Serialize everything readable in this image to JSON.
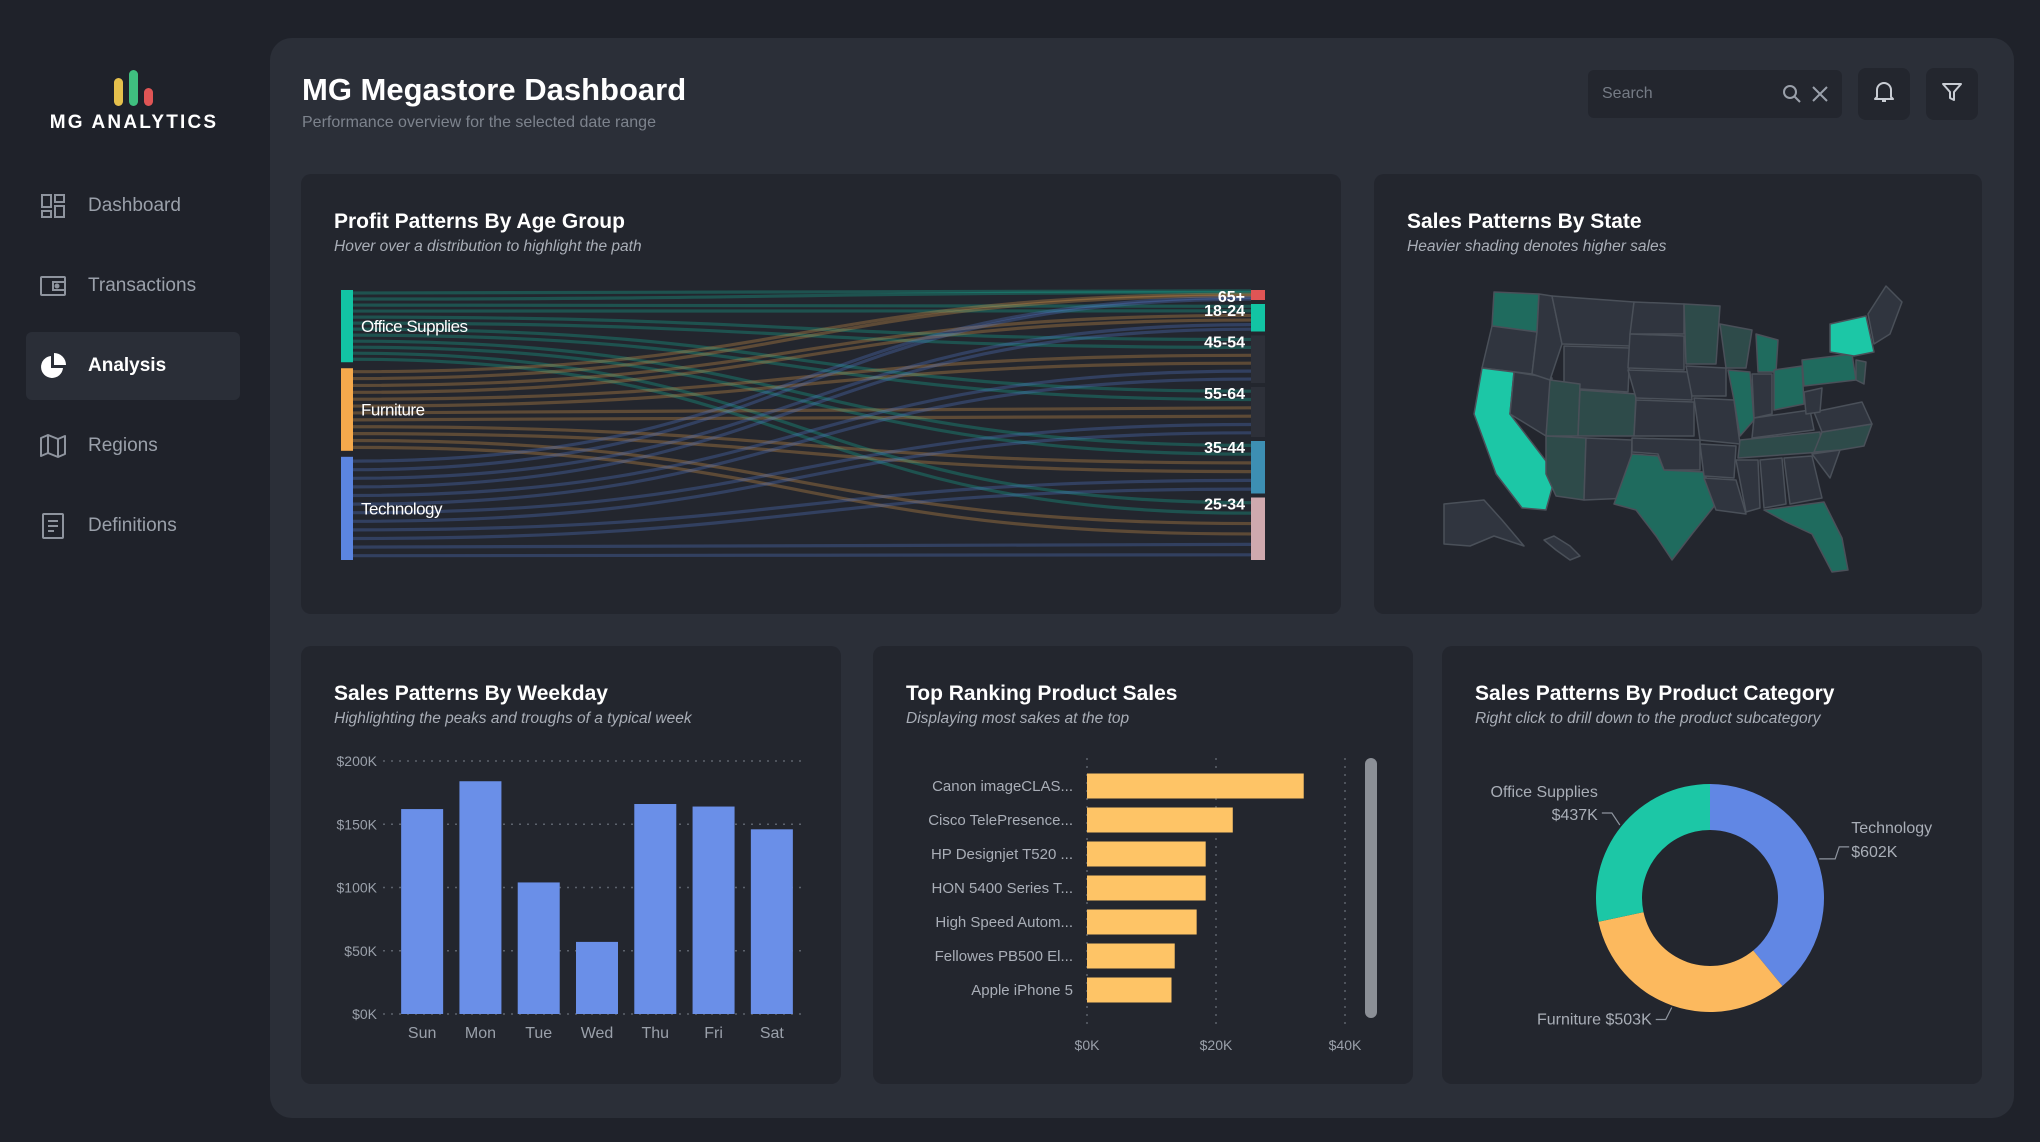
{
  "app": {
    "logo_text": "MG ANALYTICS",
    "logo_colors": [
      "#e5c04c",
      "#3fbf7f",
      "#e05555"
    ]
  },
  "sidebar": {
    "items": [
      {
        "label": "Dashboard",
        "icon": "dashboard-icon",
        "active": false
      },
      {
        "label": "Transactions",
        "icon": "wallet-icon",
        "active": false
      },
      {
        "label": "Analysis",
        "icon": "pie-chart-icon",
        "active": true
      },
      {
        "label": "Regions",
        "icon": "map-icon",
        "active": false
      },
      {
        "label": "Definitions",
        "icon": "document-icon",
        "active": false
      }
    ]
  },
  "header": {
    "title": "MG Megastore Dashboard",
    "subtitle": "Performance overview for the selected date range",
    "search_placeholder": "Search",
    "search_value": ""
  },
  "cards": {
    "profit_age": {
      "title": "Profit Patterns By Age Group",
      "subtitle": "Hover over a distribution to highlight the path"
    },
    "sales_state": {
      "title": "Sales Patterns By State",
      "subtitle": "Heavier shading denotes higher sales"
    },
    "sales_weekday": {
      "title": "Sales Patterns By Weekday",
      "subtitle": "Highlighting the peaks and troughs of a typical week"
    },
    "top_products": {
      "title": "Top Ranking Product Sales",
      "subtitle": "Displaying most sakes at the top"
    },
    "product_category": {
      "title": "Sales Patterns By Product Category",
      "subtitle": "Right click to drill down to the product subcategory"
    }
  },
  "colors": {
    "accent_teal": "#12c4a4",
    "accent_orange": "#f5a94c",
    "accent_blue": "#5b85e1",
    "bar_blue": "#6a8fe8",
    "bar_yellow": "#fec466",
    "donut_teal": "#1cc7a6",
    "donut_yellow": "#fcb95e",
    "donut_blue": "#6187e4"
  },
  "chart_data": [
    {
      "type": "sankey",
      "title": "Profit Patterns By Age Group",
      "sources": [
        {
          "name": "Office Supplies",
          "color": "#12c4a4",
          "share": 0.28
        },
        {
          "name": "Furniture",
          "color": "#f5a94c",
          "share": 0.32
        },
        {
          "name": "Technology",
          "color": "#5b85e1",
          "share": 0.4
        }
      ],
      "targets": [
        {
          "name": "65+",
          "color": "#e05555",
          "share": 0.04
        },
        {
          "name": "18-24",
          "color": "#12c4a4",
          "share": 0.11
        },
        {
          "name": "45-54",
          "color": "#2d3039",
          "share": 0.19
        },
        {
          "name": "55-64",
          "color": "#2d3039",
          "share": 0.2
        },
        {
          "name": "35-44",
          "color": "#3d8fb3",
          "share": 0.21
        },
        {
          "name": "25-34",
          "color": "#cfa9ae",
          "share": 0.25
        }
      ]
    },
    {
      "type": "choropleth",
      "title": "Sales Patterns By State",
      "high": [
        "California",
        "New York"
      ],
      "medium": [
        "Texas",
        "Washington",
        "Pennsylvania",
        "Illinois",
        "Florida",
        "Ohio",
        "Michigan"
      ],
      "shades": {
        "high": "#1cc7a6",
        "medium": "#1f6b5e",
        "low": "#2e4b4a",
        "none": "#30353f"
      }
    },
    {
      "type": "bar",
      "title": "Sales Patterns By Weekday",
      "categories": [
        "Sun",
        "Mon",
        "Tue",
        "Wed",
        "Thu",
        "Fri",
        "Sat"
      ],
      "values": [
        162000,
        184000,
        104000,
        57000,
        166000,
        164000,
        146000
      ],
      "ylim": [
        0,
        200000
      ],
      "yticks": [
        {
          "value": 0,
          "label": "$0K"
        },
        {
          "value": 50000,
          "label": "$50K"
        },
        {
          "value": 100000,
          "label": "$100K"
        },
        {
          "value": 150000,
          "label": "$150K"
        },
        {
          "value": 200000,
          "label": "$200K"
        }
      ],
      "grid": true
    },
    {
      "type": "bar",
      "orientation": "horizontal",
      "title": "Top Ranking Product Sales",
      "categories": [
        "Canon imageCLAS...",
        "Cisco TelePresence...",
        "HP Designjet T520 ...",
        "HON 5400 Series T...",
        "High Speed Autom...",
        "Fellowes PB500 El...",
        "Apple iPhone 5"
      ],
      "values": [
        33600,
        22600,
        18400,
        18400,
        17000,
        13600,
        13100
      ],
      "xlim": [
        0,
        40000
      ],
      "xticks": [
        {
          "value": 0,
          "label": "$0K"
        },
        {
          "value": 20000,
          "label": "$20K"
        },
        {
          "value": 40000,
          "label": "$40K"
        }
      ],
      "grid": true
    },
    {
      "type": "pie",
      "variant": "donut",
      "title": "Sales Patterns By Product Category",
      "slices": [
        {
          "name": "Technology",
          "value": 602,
          "label": "$602K",
          "color": "#6187e4"
        },
        {
          "name": "Furniture",
          "value": 503,
          "label": "$503K",
          "color": "#fcb95e"
        },
        {
          "name": "Office Supplies",
          "value": 437,
          "label": "$437K",
          "color": "#1cc7a6"
        }
      ]
    }
  ]
}
